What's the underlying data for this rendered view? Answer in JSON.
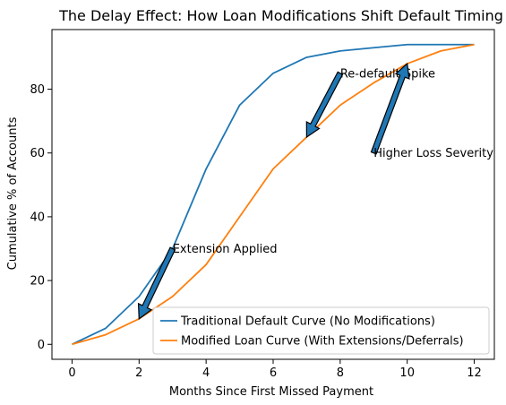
{
  "chart_data": {
    "type": "line",
    "title": "The Delay Effect: How Loan Modifications Shift Default Timing",
    "xlabel": "Months Since First Missed Payment",
    "ylabel": "Cumulative % of Accounts",
    "xlim": [
      -0.6,
      12.6
    ],
    "ylim": [
      -4.7,
      98.7
    ],
    "x_ticks": [
      0,
      2,
      4,
      6,
      8,
      10,
      12
    ],
    "y_ticks": [
      0,
      20,
      40,
      60,
      80
    ],
    "grid": false,
    "legend_position": "lower-right",
    "x": [
      0,
      1,
      2,
      3,
      4,
      5,
      6,
      7,
      8,
      9,
      10,
      11,
      12
    ],
    "series": [
      {
        "name": "Traditional Default Curve (No Modifications)",
        "color": "#1f77b4",
        "values": [
          0,
          5,
          15,
          30,
          55,
          75,
          85,
          90,
          92,
          93,
          94,
          94,
          94
        ]
      },
      {
        "name": "Modified Loan Curve (With Extensions/Deferrals)",
        "color": "#ff7f0e",
        "values": [
          0,
          3,
          8,
          15,
          25,
          40,
          55,
          65,
          75,
          82,
          88,
          92,
          94
        ]
      }
    ],
    "annotations": [
      {
        "text": "Extension Applied",
        "text_xy": [
          3,
          30
        ],
        "arrow_to": [
          2,
          8
        ]
      },
      {
        "text": "Re-default Spike",
        "text_xy": [
          8,
          85
        ],
        "arrow_to": [
          7,
          65
        ]
      },
      {
        "text": "Higher Loss Severity",
        "text_xy": [
          9,
          60
        ],
        "arrow_to": [
          10,
          88
        ]
      }
    ],
    "arrow_color": "#1f77b4"
  }
}
